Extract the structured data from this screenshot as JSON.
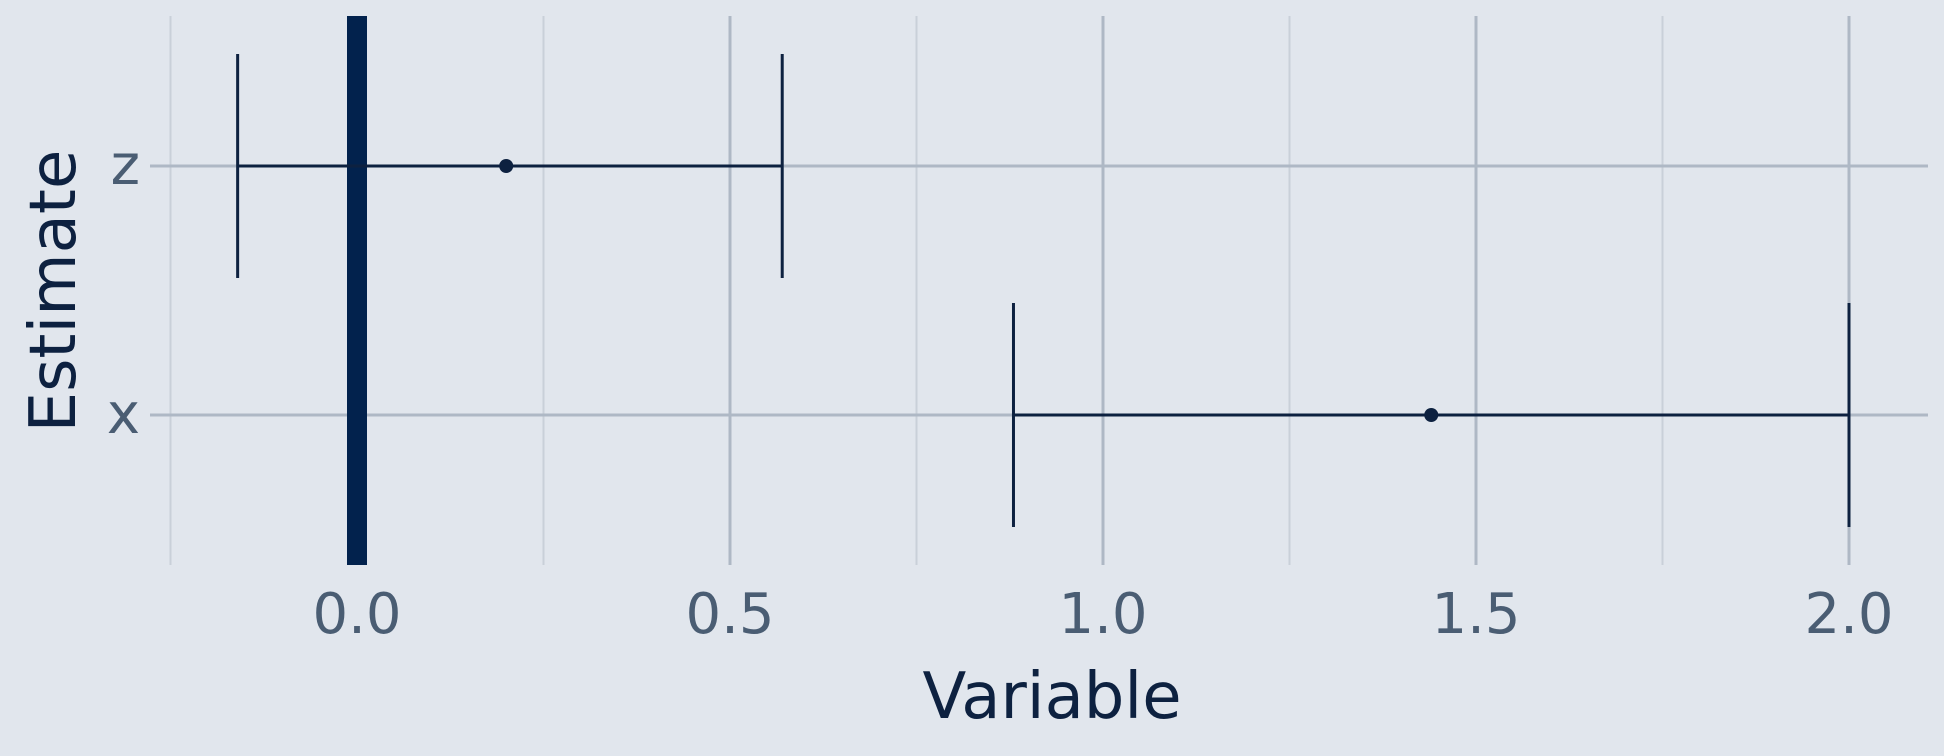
{
  "chart_data": {
    "type": "errorbar",
    "xlabel": "Variable",
    "ylabel": "Estimate",
    "categories": [
      "x",
      "z"
    ],
    "xlim": [
      -0.5,
      2.1
    ],
    "xticks": [
      0.0,
      0.5,
      1.0,
      1.5,
      2.0
    ],
    "xtick_labels": [
      "0.0",
      "0.5",
      "1.0",
      "1.5",
      "2.0"
    ],
    "points": [
      {
        "category": "x",
        "estimate": 1.44,
        "lower": 0.88,
        "upper": 2.0
      },
      {
        "category": "z",
        "estimate": 0.2,
        "lower": -0.16,
        "upper": 0.57
      }
    ],
    "reference_line": 0.0,
    "grid": true,
    "colors": {
      "background": "#e1e6ed",
      "grid_major": "#aeb8c5",
      "grid_minor": "#c9d0d9",
      "marker": "#0d2140",
      "reference_line": "#02224d",
      "tick_label": "#4a5d73",
      "axis_title": "#0d2140"
    }
  }
}
